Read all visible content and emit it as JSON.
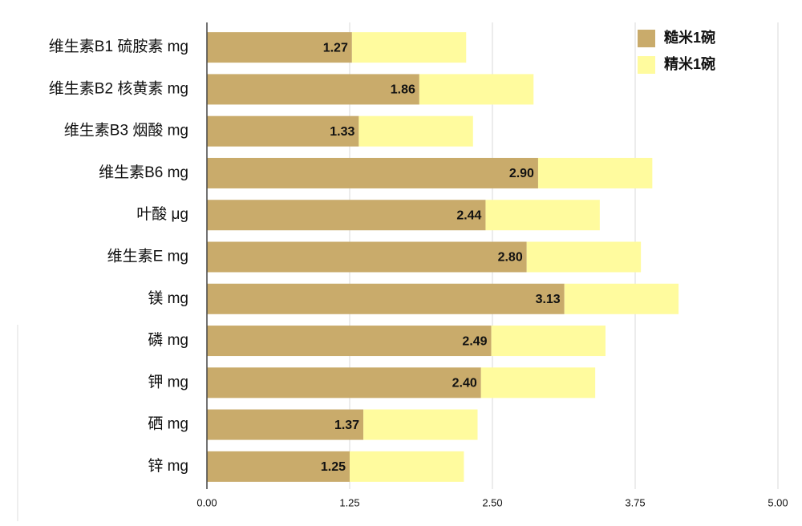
{
  "chart_data": {
    "type": "bar",
    "orientation": "horizontal",
    "stacked": true,
    "categories": [
      "维生素B1 硫胺素 mg",
      "维生素B2 核黄素 mg",
      "维生素B3 烟酸 mg",
      "维生素B6 mg",
      "叶酸 μg",
      "维生素E mg",
      "镁 mg",
      "磷 mg",
      "钾 mg",
      "硒 mg",
      "锌 mg"
    ],
    "series": [
      {
        "name": "糙米1碗",
        "color": "#c9ab6b",
        "values": [
          1.27,
          1.86,
          1.33,
          2.9,
          2.44,
          2.8,
          3.13,
          2.49,
          2.4,
          1.37,
          1.25
        ],
        "value_labels": [
          "1.27",
          "1.86",
          "1.33",
          "2.90",
          "2.44",
          "2.80",
          "3.13",
          "2.49",
          "2.40",
          "1.37",
          "1.25"
        ]
      },
      {
        "name": "精米1碗",
        "color": "#fffb9e",
        "values": [
          1,
          1,
          1,
          1,
          1,
          1,
          1,
          1,
          1,
          1,
          1
        ]
      }
    ],
    "xlim": [
      0,
      5
    ],
    "xticks": [
      {
        "value": 0,
        "label": "0.00"
      },
      {
        "value": 1.25,
        "label": "1.25"
      },
      {
        "value": 2.5,
        "label": "2.50"
      },
      {
        "value": 3.75,
        "label": "3.75"
      },
      {
        "value": 5,
        "label": "5.00"
      }
    ],
    "grid": true,
    "legend": "top-right"
  }
}
